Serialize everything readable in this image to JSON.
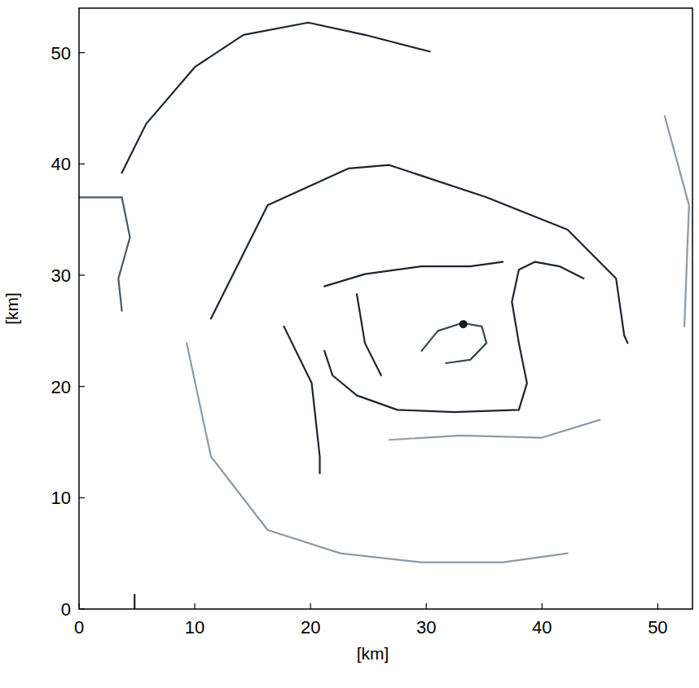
{
  "chart_data": {
    "type": "line",
    "x_label": "[km]",
    "y_label": "[km]",
    "xlim": [
      0,
      53
    ],
    "ylim": [
      0,
      54
    ],
    "xticks": [
      0,
      10,
      20,
      30,
      40,
      50
    ],
    "yticks": [
      0,
      10,
      20,
      30,
      40,
      50
    ],
    "grid": false,
    "series": [
      {
        "color": "#1c2630",
        "line_style": "solid",
        "x": [
          11.4,
          16.3,
          23.3,
          26.8,
          35.2,
          42.2,
          46.4,
          47.1,
          47.4
        ],
        "values": [
          26.1,
          36.3,
          39.6,
          39.9,
          37.0,
          34.1,
          29.7,
          24.6,
          23.9
        ]
      },
      {
        "color": "#1c2630",
        "line_style": "solid",
        "x": [
          21.2,
          21.9,
          24.0,
          27.5,
          32.4,
          38.0,
          38.7,
          38.0,
          37.4,
          38.0,
          39.4,
          41.5,
          43.6
        ],
        "values": [
          23.2,
          21.0,
          19.2,
          17.9,
          17.7,
          17.9,
          20.3,
          23.9,
          27.6,
          30.5,
          31.2,
          30.8,
          29.7
        ]
      },
      {
        "color": "#1c2630",
        "line_style": "solid",
        "x": [
          21.2,
          24.7,
          29.6,
          33.8,
          36.6
        ],
        "values": [
          29.0,
          30.1,
          30.8,
          30.8,
          31.2
        ]
      },
      {
        "color": "#3a4855",
        "line_style": "solid",
        "x": [
          29.6,
          31.0,
          33.1,
          34.8,
          35.2,
          33.8,
          31.7
        ],
        "values": [
          23.2,
          25.0,
          25.7,
          25.4,
          23.9,
          22.4,
          22.1
        ]
      },
      {
        "color": "#1c2630",
        "line_style": "solid",
        "x": [
          17.7,
          20.1,
          20.8,
          20.8
        ],
        "values": [
          25.4,
          20.3,
          13.7,
          12.2
        ]
      },
      {
        "color": "#1c2630",
        "line_style": "solid",
        "x": [
          24.0,
          24.7,
          26.1
        ],
        "values": [
          28.3,
          23.9,
          21.0
        ]
      },
      {
        "color": "#1c2630",
        "line_style": "solid",
        "x": [
          3.7,
          5.8,
          10.0,
          14.2,
          19.8,
          24.7,
          30.3
        ],
        "values": [
          39.2,
          43.6,
          48.7,
          51.6,
          52.7,
          51.6,
          50.1
        ]
      },
      {
        "color": "#4a5966",
        "line_style": "solid",
        "x": [
          0.0,
          3.7,
          4.4,
          3.4,
          3.7
        ],
        "values": [
          37.0,
          37.0,
          33.4,
          29.7,
          26.8
        ]
      },
      {
        "color": "#1c2630",
        "line_style": "solid",
        "x": [
          4.8,
          4.8
        ],
        "values": [
          1.3,
          0.0
        ]
      },
      {
        "color": "#8c9aa6",
        "line_style": "solid",
        "x": [
          9.3,
          11.4,
          16.3,
          22.6,
          29.6,
          36.6,
          42.2
        ],
        "values": [
          23.9,
          13.7,
          7.1,
          5.0,
          4.2,
          4.2,
          5.0
        ]
      },
      {
        "color": "#8c9aa6",
        "line_style": "solid",
        "x": [
          50.6,
          52.7,
          52.3
        ],
        "values": [
          44.3,
          36.3,
          25.4
        ]
      },
      {
        "color": "#8c9aa6",
        "line_style": "solid",
        "x": [
          26.8,
          33.0,
          40.0,
          45.0
        ],
        "values": [
          15.2,
          15.6,
          15.4,
          17.0
        ]
      },
      {
        "color": "#101820",
        "marker": "circle",
        "type": "scatter",
        "x": [
          33.2
        ],
        "values": [
          25.6
        ]
      }
    ]
  }
}
